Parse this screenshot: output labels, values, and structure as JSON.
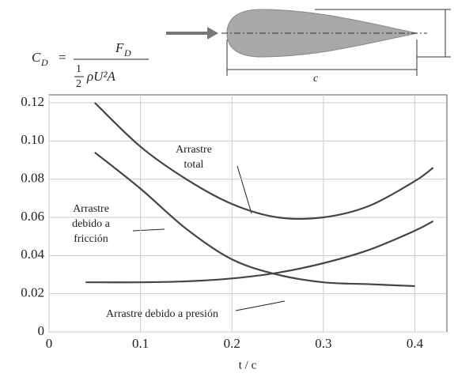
{
  "chart_data": {
    "type": "line",
    "formula": {
      "lhs": "C",
      "lhs_sub": "D",
      "equals": "=",
      "numerator": "F",
      "numerator_sub": "D",
      "half_top": "1",
      "half_bottom": "2",
      "denominator": "ρU²A"
    },
    "diagram_label": "c",
    "x_label": "t / c",
    "xlim": [
      0,
      0.435
    ],
    "ylim": [
      0,
      0.12
    ],
    "xticks": [
      0,
      0.1,
      0.2,
      0.3,
      0.4
    ],
    "yticks": [
      0,
      0.02,
      0.04,
      0.06,
      0.08,
      {
        "value": 0.1,
        "label": "0.10"
      },
      0.12
    ],
    "grid": true,
    "series": [
      {
        "label": [
          "Arrastre",
          "total"
        ],
        "color": "#454545",
        "x": [
          0.05,
          0.1,
          0.15,
          0.2,
          0.25,
          0.3,
          0.35,
          0.4,
          0.42
        ],
        "values": [
          0.12,
          0.097,
          0.08,
          0.067,
          0.06,
          0.06,
          0.066,
          0.079,
          0.086
        ]
      },
      {
        "label": [
          "Arrastre",
          "debido a",
          "fricción"
        ],
        "color": "#454545",
        "x": [
          0.05,
          0.1,
          0.15,
          0.2,
          0.25,
          0.3,
          0.35,
          0.4
        ],
        "values": [
          0.094,
          0.075,
          0.054,
          0.038,
          0.03,
          0.026,
          0.025,
          0.024
        ]
      },
      {
        "label": [
          "Arrastre debido a presión"
        ],
        "color": "#454545",
        "x": [
          0.04,
          0.1,
          0.15,
          0.2,
          0.25,
          0.3,
          0.35,
          0.4,
          0.42
        ],
        "values": [
          0.026,
          0.026,
          0.0265,
          0.028,
          0.031,
          0.036,
          0.043,
          0.053,
          0.058
        ]
      }
    ]
  }
}
